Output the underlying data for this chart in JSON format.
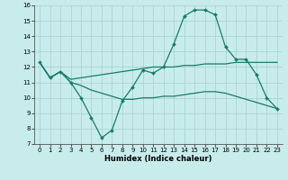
{
  "xlabel": "Humidex (Indice chaleur)",
  "background_color": "#c8ecec",
  "grid_color": "#aad4d4",
  "line_color": "#1a7a6a",
  "ylim": [
    7,
    16
  ],
  "xlim": [
    -0.5,
    23.5
  ],
  "yticks": [
    7,
    8,
    9,
    10,
    11,
    12,
    13,
    14,
    15,
    16
  ],
  "xticks": [
    0,
    1,
    2,
    3,
    4,
    5,
    6,
    7,
    8,
    9,
    10,
    11,
    12,
    13,
    14,
    15,
    16,
    17,
    18,
    19,
    20,
    21,
    22,
    23
  ],
  "line1_x": [
    0,
    1,
    2,
    3,
    4,
    5,
    6,
    7,
    8,
    9,
    10,
    11,
    12,
    13,
    14,
    15,
    16,
    17,
    18,
    19,
    20,
    21,
    22,
    23
  ],
  "line1_y": [
    12.3,
    11.3,
    11.7,
    11.0,
    10.0,
    8.7,
    7.4,
    7.9,
    9.8,
    10.7,
    11.8,
    11.6,
    12.0,
    13.5,
    15.3,
    15.7,
    15.7,
    15.4,
    13.3,
    12.5,
    12.5,
    11.5,
    10.0,
    9.3
  ],
  "line2_x": [
    0,
    1,
    2,
    3,
    4,
    5,
    6,
    7,
    8,
    9,
    10,
    11,
    12,
    13,
    14,
    15,
    16,
    17,
    18,
    19,
    20,
    21,
    22,
    23
  ],
  "line2_y": [
    12.3,
    11.3,
    11.7,
    11.2,
    11.3,
    11.4,
    11.5,
    11.6,
    11.7,
    11.8,
    11.9,
    12.0,
    12.0,
    12.0,
    12.1,
    12.1,
    12.2,
    12.2,
    12.2,
    12.3,
    12.3,
    12.3,
    12.3,
    12.3
  ],
  "line3_x": [
    0,
    1,
    2,
    3,
    4,
    5,
    6,
    7,
    8,
    9,
    10,
    11,
    12,
    13,
    14,
    15,
    16,
    17,
    18,
    19,
    20,
    21,
    22,
    23
  ],
  "line3_y": [
    12.3,
    11.3,
    11.7,
    11.0,
    10.8,
    10.5,
    10.3,
    10.1,
    9.9,
    9.9,
    10.0,
    10.0,
    10.1,
    10.1,
    10.2,
    10.3,
    10.4,
    10.4,
    10.3,
    10.1,
    9.9,
    9.7,
    9.5,
    9.3
  ]
}
